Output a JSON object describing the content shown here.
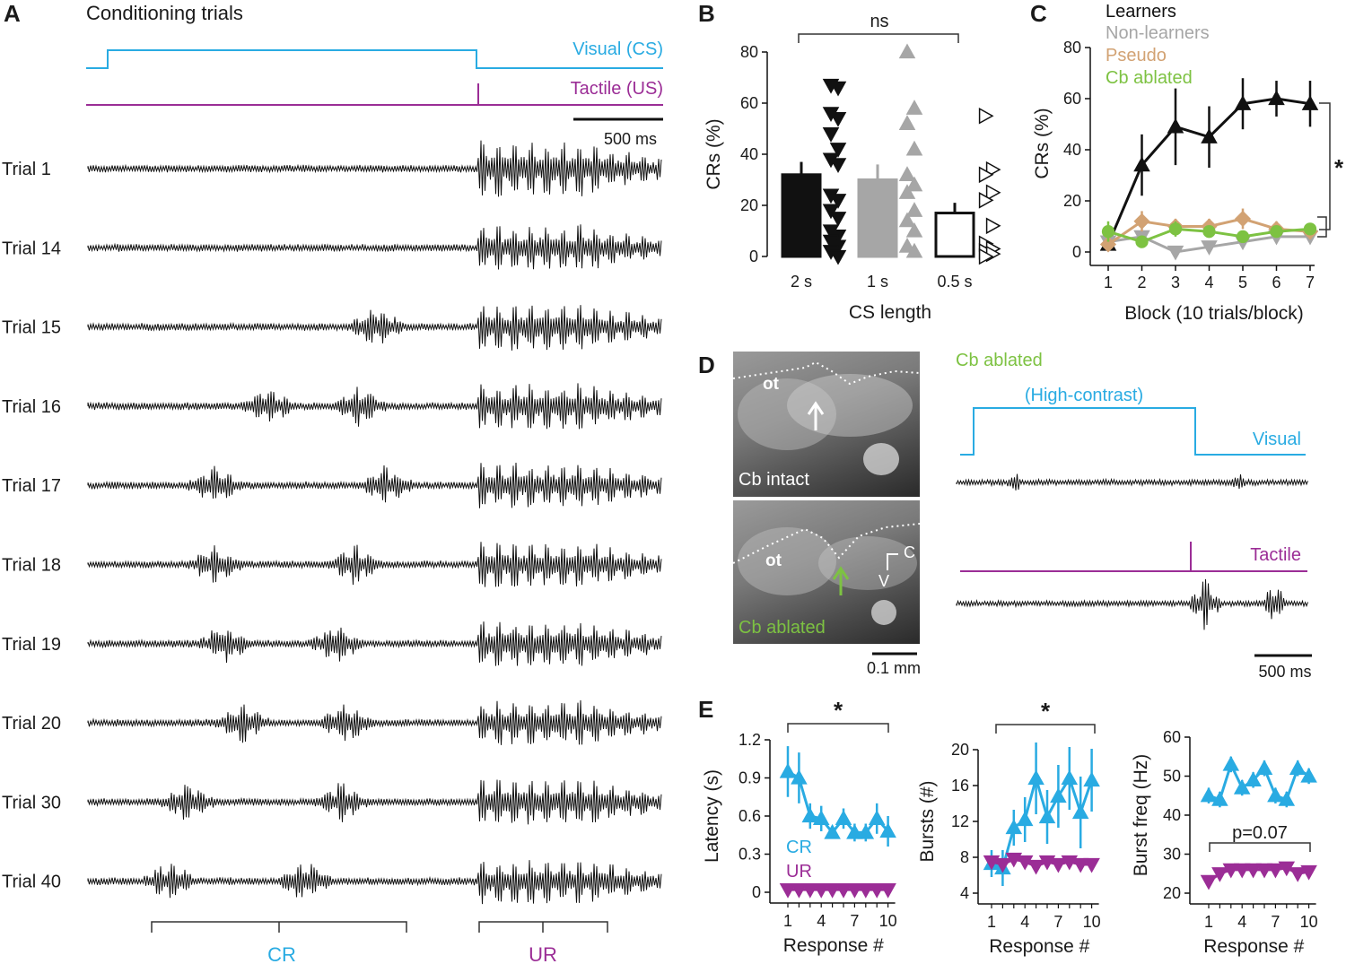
{
  "panels": {
    "a": "A",
    "b": "B",
    "c": "C",
    "d": "D",
    "e": "E"
  },
  "colors": {
    "cs": "#29abe2",
    "us": "#9b2d96",
    "black": "#111111",
    "gray": "#a6a6a6",
    "pseudo": "#d2a273",
    "ablated": "#7dc242"
  },
  "panel_a": {
    "title": "Conditioning trials",
    "visual_label": "Visual (CS)",
    "tactile_label": "Tactile (US)",
    "scale_label": "500 ms",
    "trials": [
      "Trial 1",
      "Trial 14",
      "Trial 15",
      "Trial 16",
      "Trial 17",
      "Trial 18",
      "Trial 19",
      "Trial 20",
      "Trial 30",
      "Trial 40"
    ],
    "cr_label": "CR",
    "ur_label": "UR"
  },
  "panel_d": {
    "title": "Cb ablated",
    "high_contrast": "(High-contrast)",
    "visual_label": "Visual",
    "tactile_label": "Tactile",
    "scale_label": "500 ms",
    "micro_scale": "0.1 mm",
    "img1_label": "Cb intact",
    "img2_label": "Cb ablated",
    "ot": "ot",
    "c_label": "C",
    "v_label": "V"
  },
  "chart_data": [
    {
      "type": "bar",
      "panel": "B",
      "categories": [
        "2 s",
        "1 s",
        "0.5 s"
      ],
      "values": [
        32,
        30,
        17
      ],
      "errors": [
        5,
        6,
        4
      ],
      "ylabel": "CRs (%)",
      "xlabel": "CS length",
      "ylim": [
        0,
        80
      ],
      "yticks": [
        "0",
        "20",
        "40",
        "60",
        "80"
      ],
      "significance": "ns",
      "points": [
        [
          67,
          66,
          56,
          54,
          48,
          42,
          38,
          36,
          24,
          22,
          18,
          15,
          10,
          8,
          6,
          4,
          2,
          0
        ],
        [
          80,
          58,
          52,
          42,
          32,
          28,
          25,
          18,
          14,
          10,
          4,
          2
        ],
        [
          55,
          34,
          32,
          25,
          22,
          12,
          5,
          3,
          2,
          1,
          0
        ]
      ]
    },
    {
      "type": "line",
      "panel": "C",
      "x": [
        1,
        2,
        3,
        4,
        5,
        6,
        7
      ],
      "series": [
        {
          "name": "Learners",
          "values": [
            3,
            34,
            49,
            45,
            58,
            60,
            58
          ],
          "errors": [
            2,
            12,
            15,
            12,
            10,
            7,
            9
          ]
        },
        {
          "name": "Non-learners",
          "values": [
            4,
            6,
            0,
            2,
            4,
            6,
            6
          ],
          "errors": [
            2,
            2,
            1,
            1,
            2,
            2,
            2
          ]
        },
        {
          "name": "Pseudo",
          "values": [
            3,
            12,
            10,
            10,
            13,
            9,
            8
          ],
          "errors": [
            2,
            4,
            3,
            3,
            4,
            3,
            3
          ]
        },
        {
          "name": "Cb ablated",
          "values": [
            8,
            4,
            9,
            8,
            6,
            8,
            9
          ],
          "errors": [
            4,
            2,
            3,
            2,
            2,
            2,
            2
          ]
        }
      ],
      "xlabel": "Block (10 trials/block)",
      "ylabel": "CRs (%)",
      "ylim": [
        0,
        80
      ],
      "yticks": [
        "0",
        "20",
        "40",
        "60",
        "80"
      ],
      "significance": "*"
    },
    {
      "type": "line",
      "panel": "E",
      "x": [
        1,
        2,
        3,
        4,
        5,
        6,
        7,
        8,
        9,
        10
      ],
      "series": [
        {
          "name": "CR",
          "values": [
            0.95,
            0.9,
            0.6,
            0.58,
            0.47,
            0.58,
            0.47,
            0.47,
            0.58,
            0.48
          ],
          "errors": [
            0.2,
            0.2,
            0.1,
            0.1,
            0.05,
            0.08,
            0.07,
            0.07,
            0.12,
            0.12
          ]
        },
        {
          "name": "UR",
          "values": [
            0.02,
            0.02,
            0.02,
            0.02,
            0.02,
            0.02,
            0.02,
            0.02,
            0.02,
            0.02
          ],
          "errors": [
            0,
            0,
            0,
            0,
            0,
            0,
            0,
            0,
            0,
            0
          ]
        }
      ],
      "xlabel": "Response #",
      "ylabel": "Latency (s)",
      "ylim": [
        0,
        1.2
      ],
      "yticks": [
        "0",
        "0.3",
        "0.6",
        "0.9",
        "1.2"
      ],
      "xticks": [
        "1",
        "4",
        "7",
        "10"
      ],
      "significance": "*"
    },
    {
      "type": "line",
      "panel": "E",
      "x": [
        1,
        2,
        3,
        4,
        5,
        6,
        7,
        8,
        9,
        10
      ],
      "series": [
        {
          "values": [
            7.3,
            6.8,
            11.3,
            12.2,
            16.8,
            12.5,
            14.8,
            16.8,
            13,
            16.6
          ],
          "errors": [
            1.5,
            2,
            2,
            2.5,
            4,
            3,
            3.5,
            3.5,
            4,
            3.5
          ]
        },
        {
          "values": [
            7.5,
            7.2,
            7.8,
            7.5,
            7,
            7.5,
            7.2,
            7.5,
            7.2,
            7.2
          ],
          "errors": [
            0.5,
            0.5,
            0.5,
            0.5,
            0.5,
            0.5,
            0.5,
            0.5,
            0.5,
            0.5
          ]
        }
      ],
      "xlabel": "Response #",
      "ylabel": "Bursts (#)",
      "ylim": [
        4,
        20
      ],
      "yticks": [
        "4",
        "8",
        "12",
        "16",
        "20"
      ],
      "xticks": [
        "1",
        "4",
        "7",
        "10"
      ],
      "significance": "*"
    },
    {
      "type": "line",
      "panel": "E",
      "x": [
        1,
        2,
        3,
        4,
        5,
        6,
        7,
        8,
        9,
        10
      ],
      "series": [
        {
          "values": [
            45,
            44,
            53,
            47,
            49,
            52,
            45,
            44,
            52,
            50
          ],
          "errors": [
            2,
            2,
            2,
            2,
            2,
            2,
            2,
            2,
            2,
            2
          ]
        },
        {
          "values": [
            23,
            25,
            26,
            26,
            26,
            26,
            26,
            26.5,
            25,
            25.5
          ],
          "errors": [
            1,
            1,
            1,
            1,
            1,
            1,
            1,
            1,
            1,
            1
          ]
        }
      ],
      "xlabel": "Response #",
      "ylabel": "Burst freq (Hz)",
      "ylim": [
        20,
        60
      ],
      "yticks": [
        "20",
        "30",
        "40",
        "50",
        "60"
      ],
      "xticks": [
        "1",
        "4",
        "7",
        "10"
      ],
      "significance": "p=0.07"
    }
  ]
}
